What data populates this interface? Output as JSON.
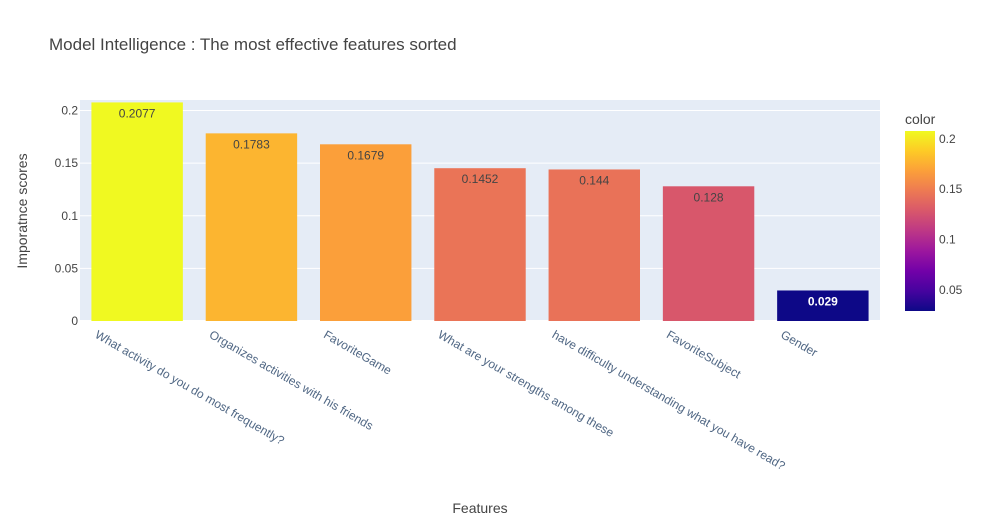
{
  "chart_data": {
    "type": "bar",
    "title": "Model Intelligence : The most effective features sorted",
    "xlabel": "Features",
    "ylabel": "Imporatnce scores",
    "categories": [
      "What activity do you do most frequently?",
      "Organizes activities with his friends",
      "FavoriteGame",
      "What are your strengths among these",
      "have difficulty understanding what you have read?",
      "FavoriteSubject",
      "Gender"
    ],
    "values": [
      0.2077,
      0.1783,
      0.1679,
      0.1452,
      0.144,
      0.128,
      0.029
    ],
    "data_labels": [
      "0.2077",
      "0.1783",
      "0.1679",
      "0.1452",
      "0.144",
      "0.128",
      "0.029"
    ],
    "ylim": [
      0,
      0.21
    ],
    "yticks": [
      0,
      0.05,
      0.1,
      0.15,
      0.2
    ],
    "ytick_labels": [
      "0",
      "0.05",
      "0.1",
      "0.15",
      "0.2"
    ],
    "colorbar": {
      "title": "color",
      "range": [
        0.029,
        0.2077
      ],
      "ticks": [
        0.05,
        0.1,
        0.15,
        0.2
      ],
      "tick_labels": [
        "0.05",
        "0.1",
        "0.15",
        "0.2"
      ],
      "colorscale": [
        "#0d0887",
        "#46039f",
        "#7201a8",
        "#9c179e",
        "#bd3786",
        "#d8576b",
        "#ed7953",
        "#fb9f3a",
        "#fdca26",
        "#f0f921"
      ]
    },
    "grid": true,
    "legend": "right",
    "background_color": "#e5ecf6"
  }
}
